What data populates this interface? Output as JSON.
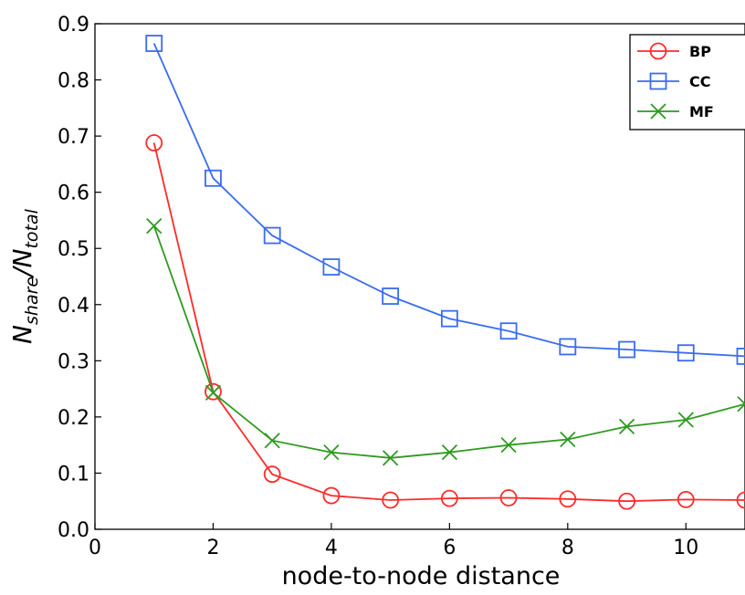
{
  "chart_data": {
    "type": "line",
    "title": "",
    "xlabel": "node-to-node distance",
    "ylabel": {
      "base": "N",
      "num_sub": "share",
      "sep": "/",
      "den_base": "N",
      "den_sub": "total"
    },
    "xlim": [
      0,
      11
    ],
    "ylim": [
      0.0,
      0.9
    ],
    "xticks": [
      0,
      2,
      4,
      6,
      8,
      10
    ],
    "yticks": [
      0.0,
      0.1,
      0.2,
      0.3,
      0.4,
      0.5,
      0.6,
      0.7,
      0.8,
      0.9
    ],
    "xtick_labels": [
      "0",
      "2",
      "4",
      "6",
      "8",
      "10"
    ],
    "ytick_labels": [
      "0.0",
      "0.1",
      "0.2",
      "0.3",
      "0.4",
      "0.5",
      "0.6",
      "0.7",
      "0.8",
      "0.9"
    ],
    "grid": false,
    "legend_position": "top-right",
    "series": [
      {
        "name": "BP",
        "color": "#ff2a2a",
        "marker": "circle",
        "x": [
          1,
          2,
          3,
          4,
          5,
          6,
          7,
          8,
          9,
          10,
          11
        ],
        "y": [
          0.688,
          0.245,
          0.098,
          0.06,
          0.052,
          0.055,
          0.056,
          0.054,
          0.05,
          0.053,
          0.052
        ]
      },
      {
        "name": "CC",
        "color": "#3a6cf0",
        "marker": "square",
        "x": [
          1,
          2,
          3,
          4,
          5,
          6,
          7,
          8,
          9,
          10,
          11
        ],
        "y": [
          0.865,
          0.625,
          0.523,
          0.467,
          0.415,
          0.375,
          0.353,
          0.325,
          0.32,
          0.314,
          0.308
        ]
      },
      {
        "name": "MF",
        "color": "#2e9a20",
        "marker": "x",
        "x": [
          1,
          2,
          3,
          4,
          5,
          6,
          7,
          8,
          9,
          10,
          11
        ],
        "y": [
          0.54,
          0.243,
          0.158,
          0.137,
          0.127,
          0.137,
          0.15,
          0.16,
          0.183,
          0.195,
          0.223
        ]
      }
    ]
  }
}
